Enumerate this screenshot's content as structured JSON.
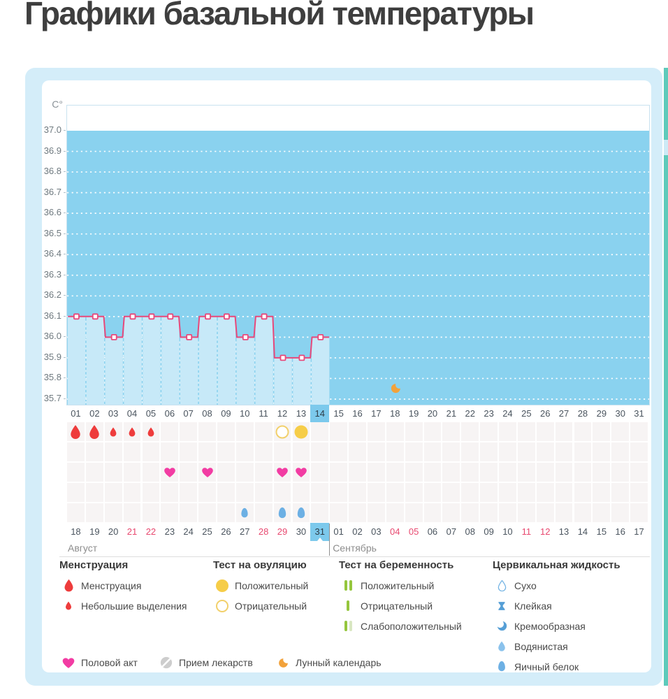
{
  "page": {
    "title": "Графики базальной температуры"
  },
  "colors": {
    "accent_line": "#e8487a",
    "plot_background": "#8ad2ef",
    "column_fill": "#c7e9f8",
    "day_highlight": "#7cc9ec",
    "menstruation_red": "#ee3c3c",
    "intercourse_pink": "#f23ca3",
    "test_yellow": "#f6cd48",
    "pregnancy_green": "#95c63d",
    "fluid_blue": "#6db0e4",
    "weekend_red": "#e8486f",
    "container_blue": "#d4edf9",
    "scrollbar_teal": "#5ecabb",
    "moon_orange": "#f2a23b"
  },
  "chart_data": {
    "type": "line",
    "title": "",
    "xlabel": "",
    "ylabel": "C°",
    "y_ticks": [
      "37.0",
      "36.9",
      "36.8",
      "36.7",
      "36.6",
      "36.5",
      "36.4",
      "36.3",
      "36.2",
      "36.1",
      "36.0",
      "35.9",
      "35.8",
      "35.7"
    ],
    "ylim": [
      35.67,
      37.12
    ],
    "grid": "white dotted horizontal lines",
    "legend_position": "bottom",
    "x_tick_labels": [
      "01",
      "02",
      "03",
      "04",
      "05",
      "06",
      "07",
      "08",
      "09",
      "10",
      "11",
      "12",
      "13",
      "14",
      "15",
      "16",
      "17",
      "18",
      "19",
      "20",
      "21",
      "22",
      "23",
      "24",
      "25",
      "26",
      "27",
      "28",
      "29",
      "30",
      "31"
    ],
    "highlighted_cycle_day": 14,
    "moon_marker_day": 18,
    "series": [
      {
        "name": "Базальная температура",
        "points": [
          [
            1,
            36.1
          ],
          [
            2,
            36.1
          ],
          [
            3,
            36.0
          ],
          [
            4,
            36.1
          ],
          [
            5,
            36.1
          ],
          [
            6,
            36.1
          ],
          [
            7,
            36.0
          ],
          [
            8,
            36.1
          ],
          [
            9,
            36.1
          ],
          [
            10,
            36.0
          ],
          [
            11,
            36.1
          ],
          [
            12,
            35.9
          ],
          [
            13,
            35.9
          ],
          [
            14,
            36.0
          ]
        ]
      }
    ]
  },
  "symbols": {
    "menstruation": [
      {
        "day": 1,
        "size": "large"
      },
      {
        "day": 2,
        "size": "large"
      },
      {
        "day": 3,
        "size": "small"
      },
      {
        "day": 4,
        "size": "small"
      },
      {
        "day": 5,
        "size": "small"
      }
    ],
    "ovulation_test": [
      {
        "day": 12,
        "result": "negative"
      },
      {
        "day": 13,
        "result": "positive"
      }
    ],
    "intercourse": [
      {
        "day": 6
      },
      {
        "day": 8
      },
      {
        "day": 12
      },
      {
        "day": 13
      }
    ],
    "cervical_fluid": [
      {
        "day": 10,
        "type": "egg-white",
        "size": "small"
      },
      {
        "day": 12,
        "type": "egg-white",
        "size": "large"
      },
      {
        "day": 13,
        "type": "egg-white",
        "size": "large"
      }
    ]
  },
  "calendar": {
    "august": {
      "label": "Август",
      "days": [
        "18",
        "19",
        "20",
        "21",
        "22",
        "23",
        "24",
        "25",
        "26",
        "27",
        "28",
        "29",
        "30",
        "31"
      ],
      "weekend_days": [
        "21",
        "22",
        "28",
        "29"
      ],
      "highlighted_day": "31"
    },
    "september": {
      "label": "Сентябрь",
      "days": [
        "01",
        "02",
        "03",
        "04",
        "05",
        "06",
        "07",
        "08",
        "09",
        "10",
        "11",
        "12",
        "13",
        "14",
        "15",
        "16",
        "17"
      ],
      "weekend_days": [
        "04",
        "05",
        "11",
        "12"
      ]
    }
  },
  "legend": {
    "sections": [
      {
        "title": "Менструация",
        "items": [
          {
            "icon": "drop-large-red",
            "label": "Менструация"
          },
          {
            "icon": "drop-small-red",
            "label": "Небольшие выделения"
          }
        ]
      },
      {
        "title": "Тест на овуляцию",
        "items": [
          {
            "icon": "circle-yellow-solid",
            "label": "Положительный"
          },
          {
            "icon": "circle-yellow-outline",
            "label": "Отрицательный"
          }
        ]
      },
      {
        "title": "Тест на беременность",
        "items": [
          {
            "icon": "bars-two-green",
            "label": "Положительный"
          },
          {
            "icon": "bar-one-green",
            "label": "Отрицательный"
          },
          {
            "icon": "bars-green-pale",
            "label": "Слабоположительный"
          }
        ]
      },
      {
        "title": "Цервикальная жидкость",
        "items": [
          {
            "icon": "drop-outline-blue",
            "label": "Сухо"
          },
          {
            "icon": "hourglass-blue",
            "label": "Клейкая"
          },
          {
            "icon": "crescent-blue",
            "label": "Кремообразная"
          },
          {
            "icon": "drop-solid-blue",
            "label": "Водянистая"
          },
          {
            "icon": "egg-solid-blue",
            "label": "Яичный белок"
          }
        ]
      }
    ],
    "extra_items": [
      {
        "icon": "heart-pink",
        "label": "Половой акт"
      },
      {
        "icon": "pill-gray",
        "label": "Прием лекарств"
      },
      {
        "icon": "moon-orange",
        "label": "Лунный календарь"
      }
    ]
  }
}
